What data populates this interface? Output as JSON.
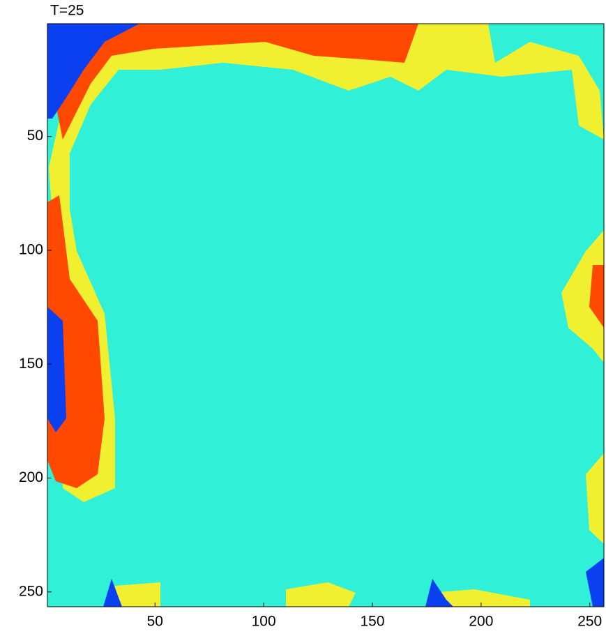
{
  "chart_data": {
    "type": "heatmap",
    "title": "T=25",
    "xlim": [
      0.5,
      256.5
    ],
    "xticks": [
      50,
      100,
      150,
      200,
      250
    ],
    "ylim": [
      0.5,
      256.5
    ],
    "yticks": [
      50,
      100,
      150,
      200,
      250
    ],
    "y_reversed": true,
    "colors": [
      "#0a40f0",
      "#30f0d8",
      "#f0f030",
      "#ff4800"
    ]
  }
}
